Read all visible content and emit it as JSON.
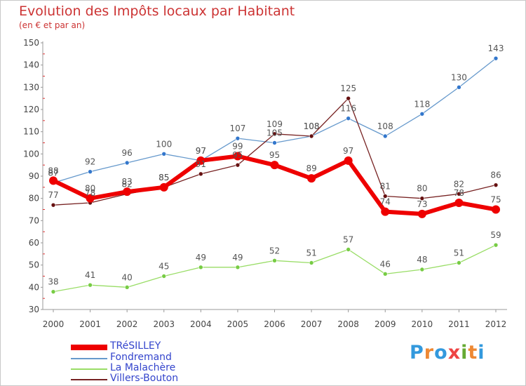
{
  "title": "Evolution des Impôts locaux par Habitant",
  "subtitle": "(en € et par an)",
  "logo": {
    "text": "Proxiti",
    "letters": [
      "P",
      "r",
      "o",
      "x",
      "i",
      "t",
      "i"
    ],
    "colors": [
      "#3399dd",
      "#ee8833",
      "#3399dd",
      "#ee4444",
      "#66aa33",
      "#ee8833",
      "#3399dd"
    ]
  },
  "chart_data": {
    "type": "line",
    "x": [
      "2000",
      "2001",
      "2002",
      "2003",
      "2004",
      "2005",
      "2006",
      "2007",
      "2008",
      "2009",
      "2010",
      "2011",
      "2012"
    ],
    "ylim": [
      30,
      150
    ],
    "yticks": [
      30,
      40,
      50,
      60,
      70,
      80,
      90,
      100,
      110,
      120,
      130,
      140,
      150
    ],
    "grid": false,
    "legend_position": "bottom-left",
    "series": [
      {
        "name": "TRéSILLEY",
        "color": "#ee0000",
        "values": [
          88,
          80,
          83,
          85,
          97,
          99,
          95,
          89,
          97,
          74,
          73,
          78,
          75
        ]
      },
      {
        "name": "Fondremand",
        "color": "#6699cc",
        "values": [
          87,
          92,
          96,
          100,
          97,
          107,
          105,
          108,
          116,
          108,
          118,
          130,
          143
        ]
      },
      {
        "name": "La Malachère",
        "color": "#99dd66",
        "values": [
          38,
          41,
          40,
          45,
          49,
          49,
          52,
          51,
          57,
          46,
          48,
          51,
          59
        ]
      },
      {
        "name": "Villers-Bouton",
        "color": "#772222",
        "values": [
          77,
          78,
          82,
          85,
          91,
          95,
          109,
          108,
          125,
          81,
          80,
          82,
          86
        ]
      }
    ]
  }
}
